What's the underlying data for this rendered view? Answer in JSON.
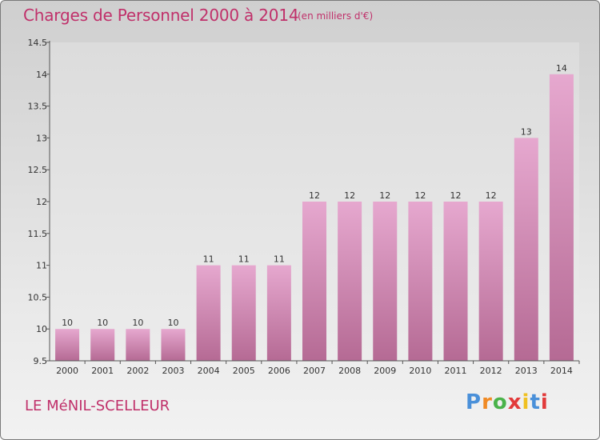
{
  "title": "Charges de Personnel 2000 à 2014",
  "subtitle": "(en milliers d'€)",
  "place": "LE MéNIL-SCELLEUR",
  "logo": {
    "text": "Proxiti",
    "letters": [
      "P",
      "r",
      "o",
      "x",
      "i",
      "t",
      "i"
    ],
    "colors": [
      "#4a90d9",
      "#f08a24",
      "#4ab34a",
      "#e23a3a",
      "#f0c020",
      "#4a90d9",
      "#e23a3a"
    ]
  },
  "colors": {
    "accent": "#c0306a",
    "bar_top": "#e6a8cf",
    "bar_bottom": "#b56a94"
  },
  "chart_data": {
    "type": "bar",
    "title": "Charges de Personnel 2000 à 2014",
    "subtitle": "(en milliers d'€)",
    "categories": [
      "2000",
      "2001",
      "2002",
      "2003",
      "2004",
      "2005",
      "2006",
      "2007",
      "2008",
      "2009",
      "2010",
      "2011",
      "2012",
      "2013",
      "2014"
    ],
    "values": [
      10,
      10,
      10,
      10,
      11,
      11,
      11,
      12,
      12,
      12,
      12,
      12,
      12,
      13,
      14
    ],
    "data_labels": [
      "10",
      "10",
      "10",
      "10",
      "11",
      "11",
      "11",
      "12",
      "12",
      "12",
      "12",
      "12",
      "12",
      "13",
      "14"
    ],
    "ylim": [
      9.5,
      14.5
    ],
    "yticks": [
      9.5,
      10,
      10.5,
      11,
      11.5,
      12,
      12.5,
      13,
      13.5,
      14,
      14.5
    ],
    "ytick_labels": [
      "9.5",
      "10",
      "10.5",
      "11",
      "11.5",
      "12",
      "12.5",
      "13",
      "13.5",
      "14",
      "14.5"
    ],
    "xlabel": "",
    "ylabel": "",
    "grid": false,
    "legend": "none"
  }
}
